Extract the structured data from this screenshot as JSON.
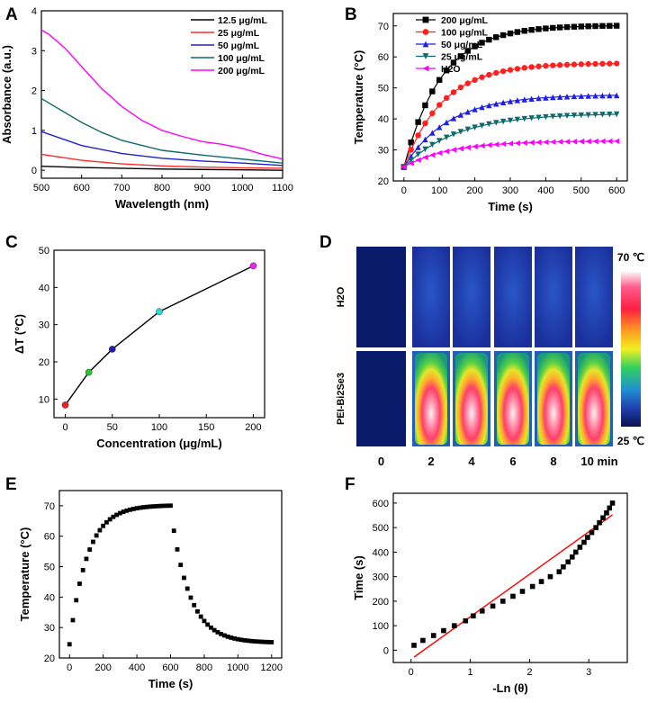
{
  "chart_data": [
    {
      "panel": "A",
      "type": "line",
      "xlabel": "Wavelength (nm)",
      "ylabel": "Absorbance (a.u.)",
      "xlim": [
        500,
        1100
      ],
      "ylim": [
        -0.2,
        4
      ],
      "xticks": [
        500,
        600,
        700,
        800,
        900,
        1000,
        1100
      ],
      "yticks": [
        0,
        1,
        2,
        3,
        4
      ],
      "legend_position": "top-right",
      "series": [
        {
          "name": "12.5 μg/mL",
          "color": "#000000",
          "x": [
            500,
            600,
            700,
            800,
            900,
            1000,
            1100
          ],
          "y": [
            0.1,
            0.07,
            0.05,
            0.03,
            0.02,
            0.01,
            0.0
          ]
        },
        {
          "name": "25 μg/mL",
          "color": "#ff2a2a",
          "x": [
            500,
            600,
            700,
            800,
            900,
            1000,
            1100
          ],
          "y": [
            0.4,
            0.25,
            0.16,
            0.11,
            0.08,
            0.06,
            0.05
          ]
        },
        {
          "name": "50 μg/mL",
          "color": "#1f1fd6",
          "x": [
            500,
            600,
            700,
            800,
            900,
            1000,
            1100
          ],
          "y": [
            0.97,
            0.62,
            0.42,
            0.3,
            0.23,
            0.18,
            0.12
          ]
        },
        {
          "name": "100 μg/mL",
          "color": "#0f6b6b",
          "x": [
            500,
            550,
            600,
            650,
            700,
            800,
            900,
            1000,
            1100
          ],
          "y": [
            1.8,
            1.5,
            1.2,
            0.95,
            0.75,
            0.5,
            0.38,
            0.28,
            0.18
          ]
        },
        {
          "name": "200 μg/mL",
          "color": "#ff00ff",
          "x": [
            500,
            520,
            560,
            600,
            650,
            700,
            750,
            800,
            850,
            900,
            950,
            1000,
            1050,
            1100
          ],
          "y": [
            3.52,
            3.4,
            3.05,
            2.6,
            2.05,
            1.6,
            1.25,
            1.0,
            0.85,
            0.72,
            0.65,
            0.55,
            0.4,
            0.28
          ]
        }
      ]
    },
    {
      "panel": "B",
      "type": "line",
      "xlabel": "Time (s)",
      "ylabel": "Temperature (°C)",
      "xlim": [
        -30,
        630
      ],
      "ylim": [
        20,
        74
      ],
      "xticks": [
        0,
        100,
        200,
        300,
        400,
        500,
        600
      ],
      "yticks": [
        20,
        30,
        40,
        50,
        60,
        70
      ],
      "legend_position": "top-left",
      "time_step_s": 20,
      "series": [
        {
          "name": "200 μg/mL",
          "color": "#000000",
          "marker": "square",
          "start": 24.5,
          "plateau": 70.2,
          "tau": 105
        },
        {
          "name": "100 μg/mL",
          "color": "#ff2020",
          "marker": "circle",
          "start": 24.5,
          "plateau": 58.0,
          "tau": 110
        },
        {
          "name": "50 μg/mL",
          "color": "#1e1ee6",
          "marker": "triangle-up",
          "start": 24.5,
          "plateau": 47.8,
          "tau": 125
        },
        {
          "name": "25 μg/mL",
          "color": "#0f6b6b",
          "marker": "triangle-down",
          "start": 24.5,
          "plateau": 41.8,
          "tau": 150
        },
        {
          "name": "H2O",
          "color": "#ff00ff",
          "marker": "triangle-left",
          "start": 24.5,
          "plateau": 32.9,
          "tau": 130
        }
      ]
    },
    {
      "panel": "C",
      "type": "scatter",
      "xlabel": "Concentration (μg/mL)",
      "ylabel": "ΔT (°C)",
      "xlim": [
        -12,
        212
      ],
      "ylim": [
        5,
        50
      ],
      "xticks": [
        0,
        50,
        100,
        150,
        200
      ],
      "yticks": [
        10,
        20,
        30,
        40,
        50
      ],
      "points": [
        {
          "x": 0,
          "y": 8.4,
          "color": "#ee2222"
        },
        {
          "x": 25,
          "y": 17.2,
          "color": "#22cc22"
        },
        {
          "x": 50,
          "y": 23.4,
          "color": "#1e1eaa"
        },
        {
          "x": 100,
          "y": 33.5,
          "color": "#22dddd"
        },
        {
          "x": 200,
          "y": 45.8,
          "color": "#ee22ee"
        }
      ]
    },
    {
      "panel": "D",
      "type": "heatmap",
      "row_labels": [
        "H2O",
        "PEI-Bi2Se3"
      ],
      "time_labels": [
        "0",
        "2",
        "4",
        "6",
        "8",
        "10 min"
      ],
      "colorbar": {
        "max_label": "70 ℃",
        "min_label": "25 ℃"
      }
    },
    {
      "panel": "E",
      "type": "scatter",
      "xlabel": "Time (s)",
      "ylabel": "Temperature (°C)",
      "xlim": [
        -60,
        1260
      ],
      "ylim": [
        20,
        75
      ],
      "xticks": [
        0,
        200,
        400,
        600,
        800,
        1000,
        1200
      ],
      "yticks": [
        20,
        30,
        40,
        50,
        60,
        70
      ],
      "time_step_s": 20,
      "heating": {
        "start": 24.5,
        "plateau": 70.2,
        "tau": 105,
        "end_s": 600
      },
      "cooling": {
        "start": 61.8,
        "ambient": 25.0,
        "tau": 110,
        "end_s": 1200
      }
    },
    {
      "panel": "F",
      "type": "scatter",
      "xlabel": "-Ln (θ)",
      "ylabel": "Time (s)",
      "xlim": [
        -0.3,
        3.65
      ],
      "ylim": [
        -50,
        640
      ],
      "xticks": [
        0,
        1,
        2,
        3
      ],
      "yticks": [
        0,
        100,
        200,
        300,
        400,
        500,
        600
      ],
      "points": [
        [
          0.05,
          20
        ],
        [
          0.2,
          40
        ],
        [
          0.38,
          60
        ],
        [
          0.55,
          80
        ],
        [
          0.73,
          100
        ],
        [
          0.92,
          120
        ],
        [
          1.05,
          140
        ],
        [
          1.2,
          160
        ],
        [
          1.38,
          180
        ],
        [
          1.55,
          200
        ],
        [
          1.72,
          220
        ],
        [
          1.88,
          240
        ],
        [
          2.05,
          260
        ],
        [
          2.2,
          280
        ],
        [
          2.35,
          300
        ],
        [
          2.5,
          320
        ],
        [
          2.57,
          340
        ],
        [
          2.65,
          360
        ],
        [
          2.72,
          380
        ],
        [
          2.78,
          400
        ],
        [
          2.85,
          420
        ],
        [
          2.92,
          440
        ],
        [
          2.98,
          460
        ],
        [
          3.05,
          480
        ],
        [
          3.12,
          500
        ],
        [
          3.18,
          520
        ],
        [
          3.24,
          540
        ],
        [
          3.3,
          560
        ],
        [
          3.35,
          580
        ],
        [
          3.4,
          600
        ]
      ],
      "fit_line": {
        "x": [
          0.05,
          3.4
        ],
        "y": [
          -28,
          552
        ],
        "color": "#ff0000"
      }
    }
  ]
}
